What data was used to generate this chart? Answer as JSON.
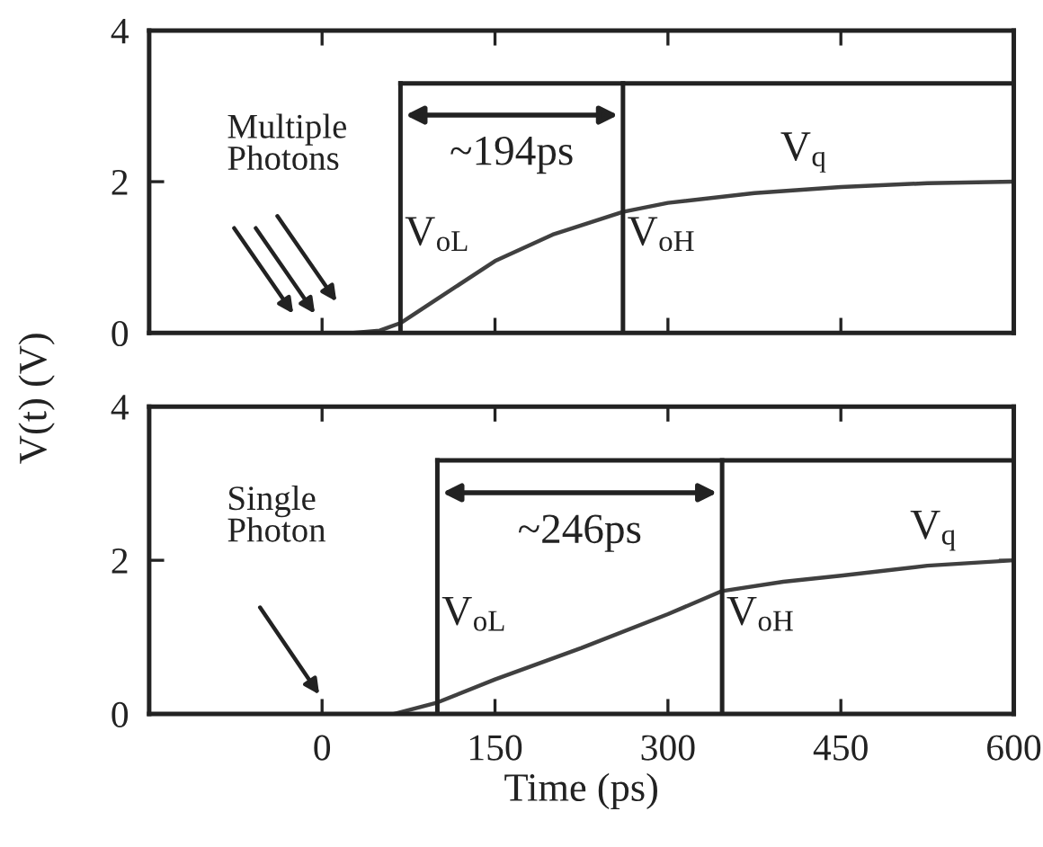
{
  "chart_data": [
    {
      "type": "line",
      "tick_labels": "y",
      "ylabel": "V(t) (V)",
      "xlim": [
        -150,
        600
      ],
      "xticks": [
        {
          "value": 0,
          "label": null
        },
        {
          "value": 150,
          "label": null
        },
        {
          "value": 300,
          "label": null
        },
        {
          "value": 450,
          "label": null
        }
      ],
      "ylim": [
        0,
        4
      ],
      "yticks": [
        0,
        2,
        4
      ],
      "grid": false,
      "legend": false,
      "series": [
        {
          "color": "#404040",
          "x": [
            -150,
            0,
            27,
            50,
            68,
            100,
            150,
            200,
            261,
            300,
            375,
            450,
            525,
            600
          ],
          "values": [
            0,
            0,
            0,
            0.03,
            0.13,
            0.45,
            0.95,
            1.3,
            1.6,
            1.72,
            1.85,
            1.93,
            1.98,
            2.0
          ]
        }
      ],
      "ref_lines": [
        {
          "axis": "x",
          "value": 68,
          "label": "V$_{oL}$"
        },
        {
          "axis": "x",
          "value": 261,
          "label": "V$_{oH}$"
        },
        {
          "axis": "y",
          "value": 3.3
        }
      ],
      "annotations": [
        "Multiple\nPhotons",
        "~194ps",
        "V$_{q}$"
      ]
    },
    {
      "type": "line",
      "xlabel": "Time (ps)",
      "xlim": [
        -150,
        600
      ],
      "xticks": [
        0,
        150,
        300,
        450,
        600
      ],
      "ylim": [
        0,
        4
      ],
      "yticks": [
        0,
        2,
        4
      ],
      "grid": false,
      "legend": false,
      "series": [
        {
          "color": "#404040",
          "x": [
            -150,
            0,
            62,
            100,
            150,
            225,
            300,
            347,
            400,
            450,
            525,
            600
          ],
          "values": [
            0,
            0,
            0,
            0.15,
            0.45,
            0.86,
            1.3,
            1.6,
            1.72,
            1.8,
            1.93,
            2.0
          ]
        }
      ],
      "ref_lines": [
        {
          "axis": "x",
          "value": 100,
          "label": "V$_{oL}$"
        },
        {
          "axis": "x",
          "value": 347,
          "label": "V$_{oH}$"
        },
        {
          "axis": "y",
          "value": 3.3
        }
      ],
      "annotations": [
        "Single\nPhoton",
        "~246ps",
        "V$_{q}$"
      ]
    }
  ]
}
